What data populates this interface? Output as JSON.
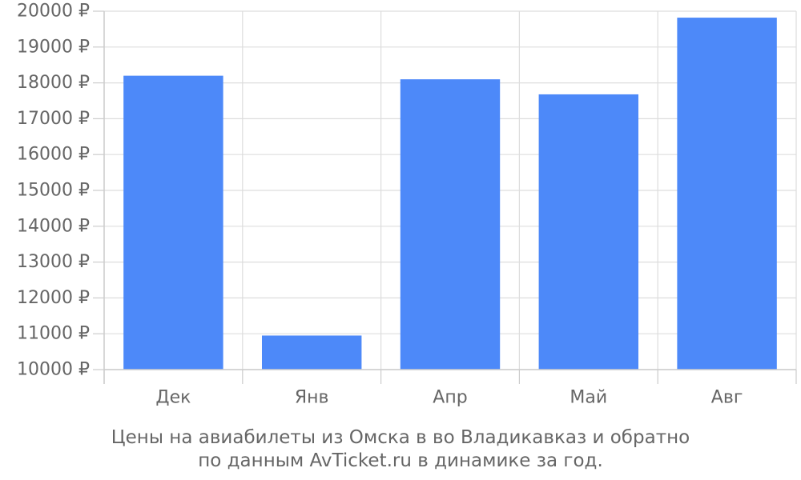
{
  "chart_data": {
    "type": "bar",
    "categories": [
      "Дек",
      "Янв",
      "Апр",
      "Май",
      "Авг"
    ],
    "values": [
      18200,
      10950,
      18100,
      17680,
      19820
    ],
    "ylim": [
      10000,
      20000
    ],
    "yticks": [
      {
        "value": 10000,
        "label": "10000 ₽"
      },
      {
        "value": 11000,
        "label": "11000 ₽"
      },
      {
        "value": 12000,
        "label": "12000 ₽"
      },
      {
        "value": 13000,
        "label": "13000 ₽"
      },
      {
        "value": 14000,
        "label": "14000 ₽"
      },
      {
        "value": 15000,
        "label": "15000 ₽"
      },
      {
        "value": 16000,
        "label": "16000 ₽"
      },
      {
        "value": 17000,
        "label": "17000 ₽"
      },
      {
        "value": 18000,
        "label": "18000 ₽"
      },
      {
        "value": 19000,
        "label": "19000 ₽"
      },
      {
        "value": 20000,
        "label": "20000 ₽"
      }
    ],
    "grid": true,
    "bar_color": "#4d89f9",
    "caption": [
      "Цены на авиабилеты из Омска в во Владикавказ и обратно",
      "по данным AvTicket.ru в динамике за год."
    ]
  }
}
